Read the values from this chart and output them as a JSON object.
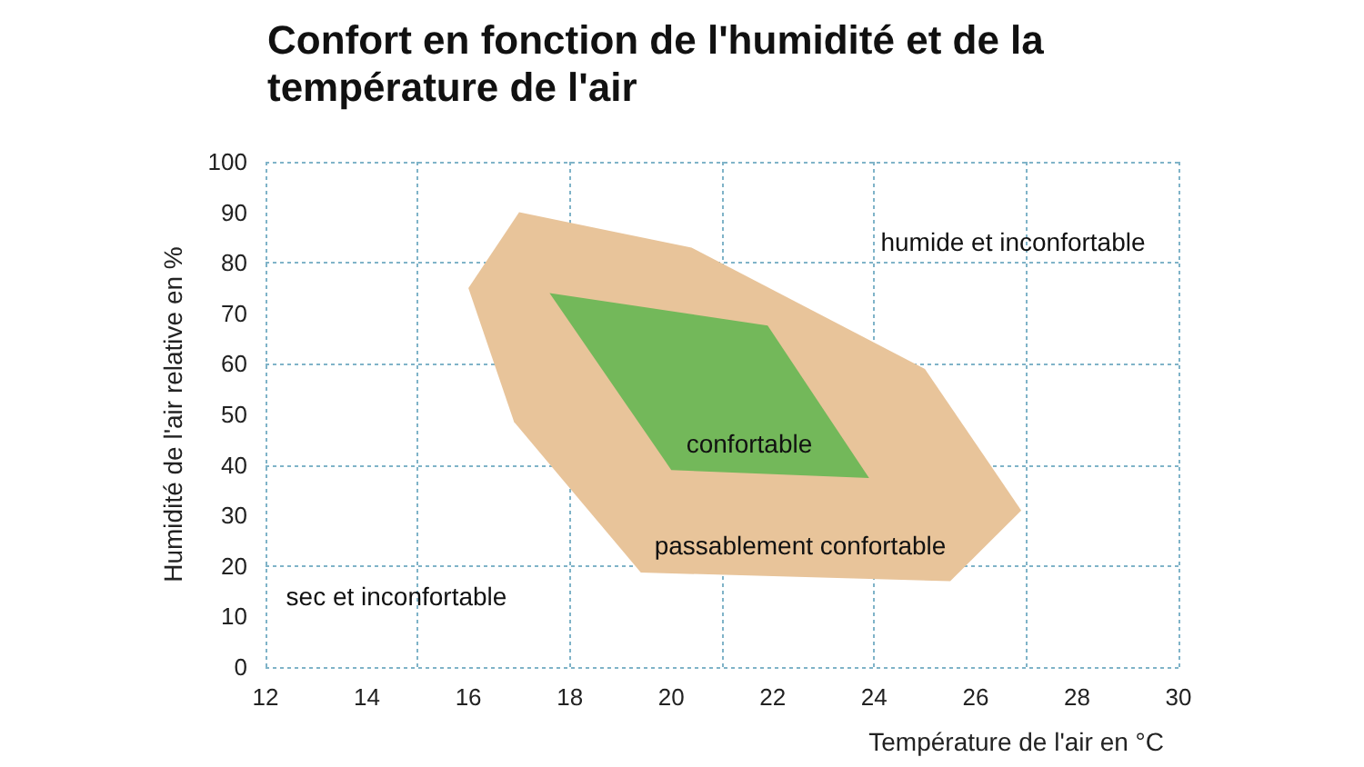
{
  "chart_data": {
    "type": "area",
    "title": "Confort en fonction de l'humidité et de la température de l'air",
    "xlabel": "Température de l'air en °C",
    "ylabel": "Humidité de l'air relative en %",
    "series": [
      {
        "color": "#e8c49a",
        "x": [
          17,
          20.4,
          25,
          26.9,
          25.5,
          19.4,
          16.9,
          16
        ],
        "values": [
          90,
          83,
          59,
          31,
          17,
          18.7,
          48.5,
          75
        ]
      },
      {
        "color": "#73b85a",
        "x": [
          17.6,
          21.9,
          23.9,
          20
        ],
        "values": [
          74,
          67.6,
          37.4,
          39
        ]
      }
    ],
    "annotations": [
      "humide et inconfortable",
      "confortable",
      "passablement confortable",
      "sec et inconfortable"
    ],
    "xlim": [
      12,
      30
    ],
    "xticks": [
      12,
      14,
      16,
      18,
      20,
      22,
      24,
      26,
      28,
      30
    ],
    "ylim": [
      0,
      100
    ],
    "yticks": [
      0,
      10,
      20,
      30,
      40,
      50,
      60,
      70,
      80,
      90,
      100
    ],
    "grid": true
  }
}
